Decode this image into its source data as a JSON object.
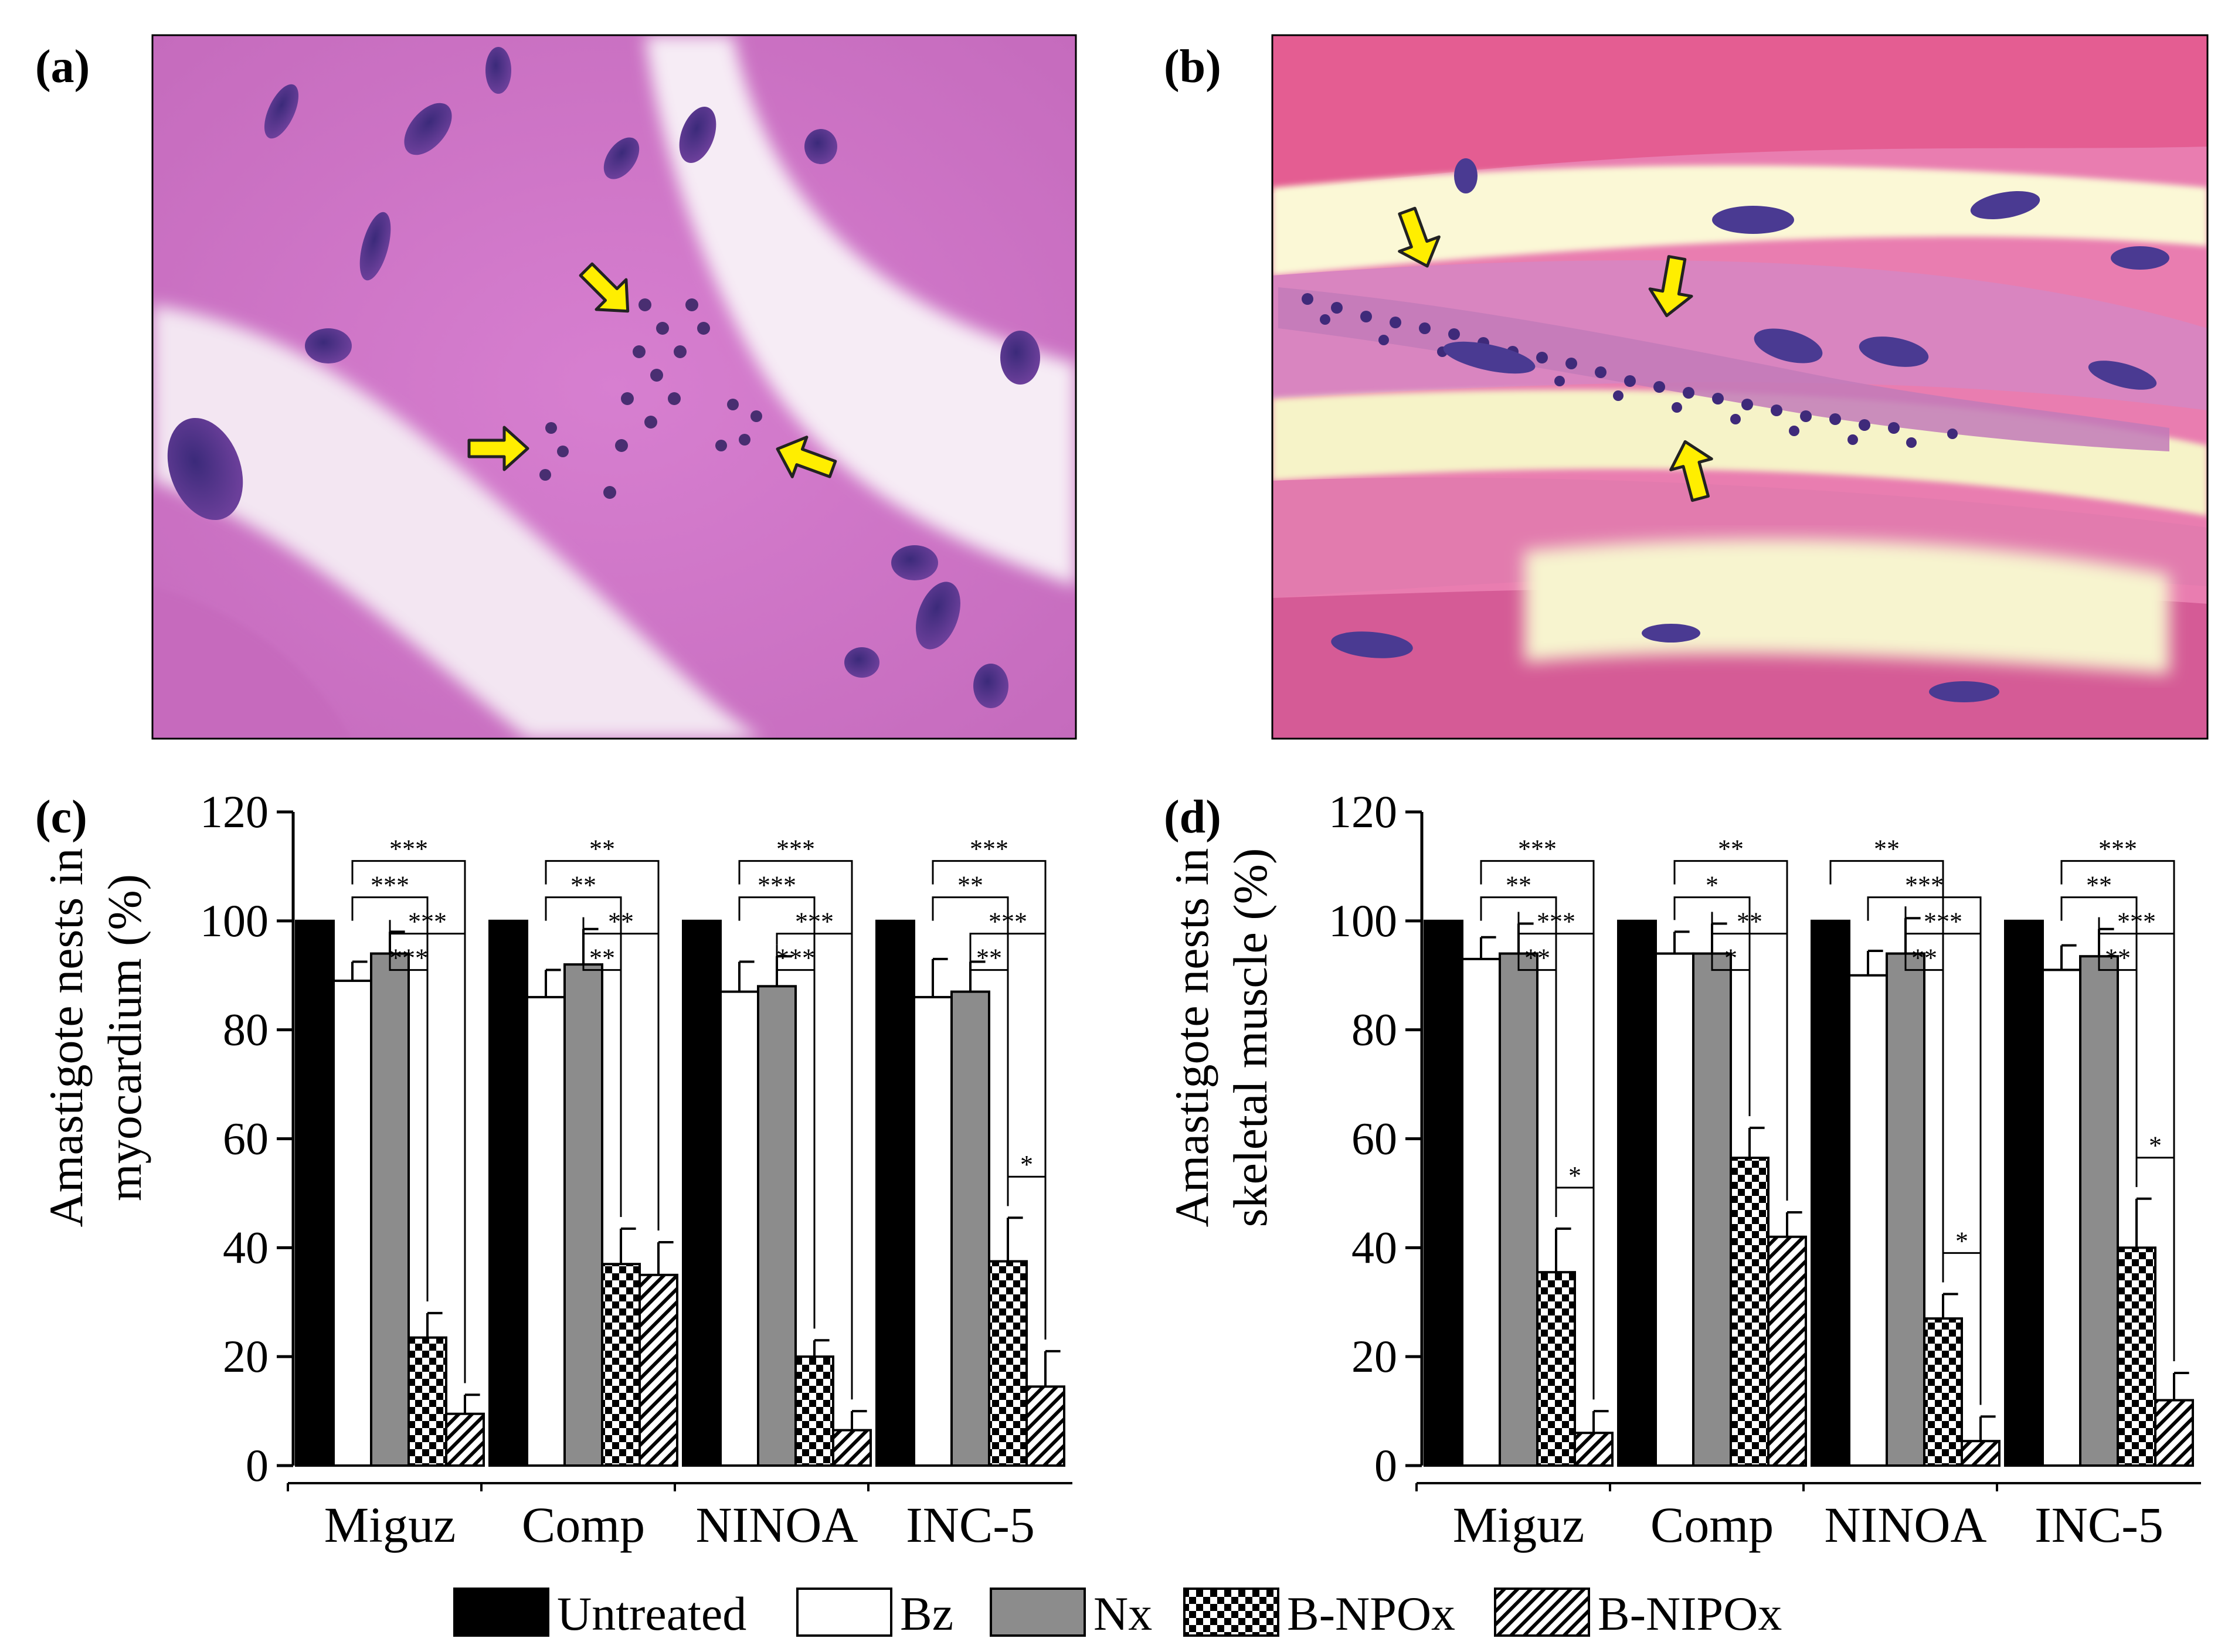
{
  "panels": {
    "a": {
      "label": "(a)"
    },
    "b": {
      "label": "(b)"
    },
    "c": {
      "label": "(c)"
    },
    "d": {
      "label": "(d)"
    }
  },
  "colors": {
    "untreated": "#000000",
    "bz": "#ffffff",
    "nx": "#8c8c8c",
    "arrow": "#ffee00",
    "arrow_outline": "#222222"
  },
  "legend": [
    {
      "key": "untreated",
      "label": "Untreated",
      "pattern": "solid-black"
    },
    {
      "key": "bz",
      "label": "Bz",
      "pattern": "white"
    },
    {
      "key": "nx",
      "label": "Nx",
      "pattern": "solid-gray"
    },
    {
      "key": "bnpox",
      "label": "B-NPOx",
      "pattern": "checker"
    },
    {
      "key": "bnipox",
      "label": "B-NIPOx",
      "pattern": "hatch"
    }
  ],
  "chart_data": [
    {
      "panel": "c",
      "type": "bar",
      "ylabel_line1": "Amastigote nests in",
      "ylabel_line2": "myocardium (%)",
      "ylim": [
        0,
        120
      ],
      "yticks": [
        0,
        20,
        40,
        60,
        80,
        100,
        120
      ],
      "categories": [
        "Miguz",
        "Comp",
        "NINOA",
        "INC-5"
      ],
      "series": [
        {
          "name": "Untreated",
          "values": [
            100,
            100,
            100,
            100
          ],
          "errors": [
            0,
            0,
            0,
            0
          ]
        },
        {
          "name": "Bz",
          "values": [
            89,
            86,
            87,
            86
          ],
          "errors": [
            3.5,
            5,
            5.5,
            7
          ]
        },
        {
          "name": "Nx",
          "values": [
            94,
            92,
            88,
            87
          ],
          "errors": [
            4,
            6.5,
            5.5,
            5.5
          ]
        },
        {
          "name": "B-NPOx",
          "values": [
            23.5,
            37,
            20,
            37.5
          ],
          "errors": [
            4.5,
            6.5,
            3,
            8
          ]
        },
        {
          "name": "B-NIPOx",
          "values": [
            9.5,
            35,
            6.5,
            14.5
          ],
          "errors": [
            3.5,
            6,
            3.5,
            6.5
          ]
        }
      ],
      "significance": [
        [
          {
            "from": 1,
            "to": 3,
            "label": "***"
          },
          {
            "from": 1,
            "to": 4,
            "label": "***"
          },
          {
            "from": 2,
            "to": 4,
            "label": "***"
          },
          {
            "from": 2,
            "to": 3,
            "label": "***"
          }
        ],
        [
          {
            "from": 1,
            "to": 3,
            "label": "**"
          },
          {
            "from": 1,
            "to": 4,
            "label": "**"
          },
          {
            "from": 2,
            "to": 4,
            "label": "**"
          },
          {
            "from": 2,
            "to": 3,
            "label": "**"
          }
        ],
        [
          {
            "from": 1,
            "to": 3,
            "label": "***"
          },
          {
            "from": 1,
            "to": 4,
            "label": "***"
          },
          {
            "from": 2,
            "to": 4,
            "label": "***"
          },
          {
            "from": 2,
            "to": 3,
            "label": "***"
          }
        ],
        [
          {
            "from": 1,
            "to": 3,
            "label": "**"
          },
          {
            "from": 1,
            "to": 4,
            "label": "***"
          },
          {
            "from": 2,
            "to": 4,
            "label": "***"
          },
          {
            "from": 2,
            "to": 3,
            "label": "**"
          },
          {
            "from": 3,
            "to": 4,
            "label": "*"
          }
        ]
      ]
    },
    {
      "panel": "d",
      "type": "bar",
      "ylabel_line1": "Amastigote nests in",
      "ylabel_line2": "skeletal muscle (%)",
      "ylim": [
        0,
        120
      ],
      "yticks": [
        0,
        20,
        40,
        60,
        80,
        100,
        120
      ],
      "categories": [
        "Miguz",
        "Comp",
        "NINOA",
        "INC-5"
      ],
      "series": [
        {
          "name": "Untreated",
          "values": [
            100,
            100,
            100,
            100
          ],
          "errors": [
            0,
            0,
            0,
            0
          ]
        },
        {
          "name": "Bz",
          "values": [
            93,
            94,
            90,
            91
          ],
          "errors": [
            4,
            4,
            4.5,
            4.5
          ]
        },
        {
          "name": "Nx",
          "values": [
            94,
            94,
            94,
            93.5
          ],
          "errors": [
            5.5,
            5.5,
            6.5,
            5
          ]
        },
        {
          "name": "B-NPOx",
          "values": [
            35.5,
            56.5,
            27,
            40
          ],
          "errors": [
            8,
            5.5,
            4.5,
            9
          ]
        },
        {
          "name": "B-NIPOx",
          "values": [
            6,
            42,
            4.5,
            12
          ],
          "errors": [
            4,
            4.5,
            4.5,
            5
          ]
        }
      ],
      "significance": [
        [
          {
            "from": 1,
            "to": 3,
            "label": "**"
          },
          {
            "from": 1,
            "to": 4,
            "label": "***"
          },
          {
            "from": 2,
            "to": 4,
            "label": "***"
          },
          {
            "from": 2,
            "to": 3,
            "label": "**"
          },
          {
            "from": 3,
            "to": 4,
            "label": "*"
          }
        ],
        [
          {
            "from": 1,
            "to": 3,
            "label": "*"
          },
          {
            "from": 1,
            "to": 4,
            "label": "**"
          },
          {
            "from": 2,
            "to": 4,
            "label": "**"
          },
          {
            "from": 2,
            "to": 3,
            "label": "*"
          }
        ],
        [
          {
            "from": 0,
            "to": 3,
            "label": "**"
          },
          {
            "from": 1,
            "to": 4,
            "label": "***"
          },
          {
            "from": 2,
            "to": 4,
            "label": "***"
          },
          {
            "from": 2,
            "to": 3,
            "label": "**"
          },
          {
            "from": 3,
            "to": 4,
            "label": "*"
          }
        ],
        [
          {
            "from": 1,
            "to": 3,
            "label": "**"
          },
          {
            "from": 1,
            "to": 4,
            "label": "***"
          },
          {
            "from": 2,
            "to": 4,
            "label": "***"
          },
          {
            "from": 2,
            "to": 3,
            "label": "**"
          },
          {
            "from": 3,
            "to": 4,
            "label": "*"
          }
        ]
      ]
    }
  ]
}
